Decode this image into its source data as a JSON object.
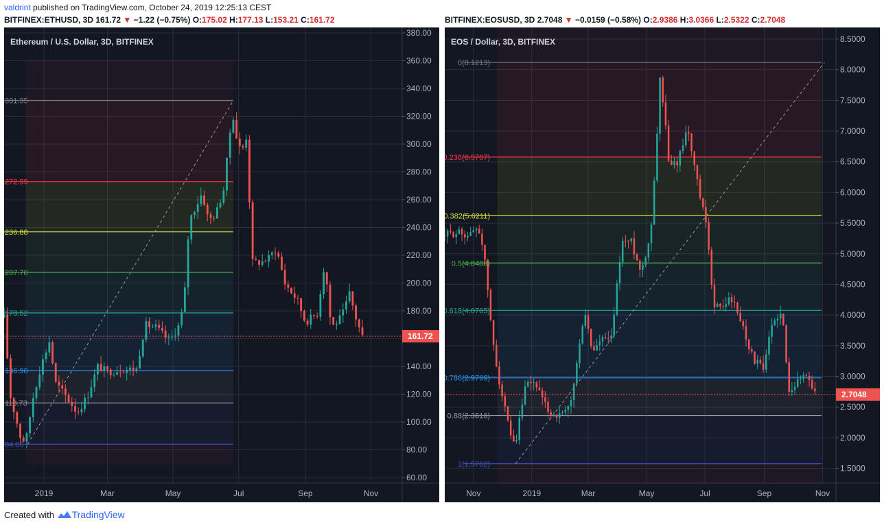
{
  "publish_line": {
    "user": "valdrint",
    "text": " published on TradingView.com, October 24, 2019 12:25:13 CEST"
  },
  "footer": {
    "created": "Created with",
    "brand": "TradingView"
  },
  "left": {
    "header": {
      "symbol": "BITFINEX:ETHUSD, 3D",
      "last": "161.72",
      "change": "−1.22 (−0.75%)",
      "o": "175.02",
      "h": "177.13",
      "l": "153.21",
      "c": "161.72"
    },
    "title": "Ethereum / U.S. Dollar, 3D, BITFINEX",
    "price_label": "161.72"
  },
  "right": {
    "header": {
      "symbol": "BITFINEX:EOSUSD, 3D",
      "last": "2.7048",
      "change": "−0.0159 (−0.58%)",
      "o": "2.9386",
      "h": "3.0366",
      "l": "2.5322",
      "c": "2.7048"
    },
    "title": "EOS / Dollar, 3D, BITFINEX",
    "price_label": "2.7048"
  },
  "colors": {
    "bg": "#131722",
    "up": "#26a69a",
    "down": "#ef5350",
    "axis_text": "#b2b5be",
    "grid": "#2a2e39"
  },
  "chart_data": [
    {
      "type": "candlestick",
      "title": "Ethereum / U.S. Dollar, 3D, BITFINEX",
      "ylim": [
        60,
        380
      ],
      "y_ticks": [
        "60.00",
        "80.00",
        "100.00",
        "120.00",
        "140.00",
        "160.00",
        "180.00",
        "200.00",
        "220.00",
        "240.00",
        "260.00",
        "280.00",
        "300.00",
        "320.00",
        "340.00",
        "360.00",
        "380.00"
      ],
      "x_ticks": [
        "2019",
        "Mar",
        "May",
        "Jul",
        "Sep",
        "Nov"
      ],
      "x_tick_dates": [
        "2019-01-01",
        "2019-03-01",
        "2019-05-01",
        "2019-07-01",
        "2019-09-01",
        "2019-11-01"
      ],
      "x_range": [
        "2018-11-25",
        "2019-11-30"
      ],
      "current_price": 161.72,
      "fib": [
        {
          "label": "331.35",
          "value": 331.35,
          "color": "#787b86"
        },
        {
          "label": "272.99",
          "value": 272.99,
          "color": "#f23645"
        },
        {
          "label": "236.88",
          "value": 236.88,
          "color": "#cddc39"
        },
        {
          "label": "207.70",
          "value": 207.7,
          "color": "#4caf50"
        },
        {
          "label": "178.52",
          "value": 178.52,
          "color": "#26a69a"
        },
        {
          "label": "136.98",
          "value": 136.98,
          "color": "#2196f3"
        },
        {
          "label": "113.73",
          "value": 113.73,
          "color": "#9598a1"
        },
        {
          "label": "84.06",
          "value": 84.06,
          "color": "#3f51b5"
        }
      ],
      "fib_start_date": "2018-12-15",
      "fib_end_date": "2019-06-26",
      "trend_line": {
        "from": {
          "date": "2018-12-17",
          "price": 84.06
        },
        "to": {
          "date": "2019-06-26",
          "price": 331.35
        }
      },
      "anchors": [
        [
          "2018-11-25",
          175
        ],
        [
          "2018-12-01",
          118
        ],
        [
          "2018-12-10",
          90
        ],
        [
          "2018-12-15",
          85
        ],
        [
          "2018-12-22",
          118
        ],
        [
          "2018-12-29",
          140
        ],
        [
          "2019-01-06",
          158
        ],
        [
          "2019-01-12",
          128
        ],
        [
          "2019-01-20",
          120
        ],
        [
          "2019-02-01",
          107
        ],
        [
          "2019-02-10",
          118
        ],
        [
          "2019-02-20",
          140
        ],
        [
          "2019-03-01",
          136
        ],
        [
          "2019-03-15",
          138
        ],
        [
          "2019-03-28",
          138
        ],
        [
          "2019-04-05",
          170
        ],
        [
          "2019-04-15",
          168
        ],
        [
          "2019-04-28",
          158
        ],
        [
          "2019-05-08",
          172
        ],
        [
          "2019-05-12",
          195
        ],
        [
          "2019-05-16",
          245
        ],
        [
          "2019-05-28",
          265
        ],
        [
          "2019-06-03",
          245
        ],
        [
          "2019-06-10",
          250
        ],
        [
          "2019-06-18",
          270
        ],
        [
          "2019-06-22",
          305
        ],
        [
          "2019-06-26",
          320
        ],
        [
          "2019-06-30",
          300
        ],
        [
          "2019-07-04",
          295
        ],
        [
          "2019-07-08",
          305
        ],
        [
          "2019-07-14",
          215
        ],
        [
          "2019-07-22",
          215
        ],
        [
          "2019-07-29",
          218
        ],
        [
          "2019-08-05",
          225
        ],
        [
          "2019-08-13",
          200
        ],
        [
          "2019-08-25",
          187
        ],
        [
          "2019-09-01",
          172
        ],
        [
          "2019-09-12",
          178
        ],
        [
          "2019-09-19",
          215
        ],
        [
          "2019-09-25",
          168
        ],
        [
          "2019-10-05",
          176
        ],
        [
          "2019-10-12",
          192
        ],
        [
          "2019-10-19",
          172
        ],
        [
          "2019-10-24",
          161.72
        ]
      ]
    },
    {
      "type": "candlestick",
      "title": "EOS / Dollar, 3D, BITFINEX",
      "ylim": [
        1.35,
        8.6
      ],
      "y_ticks": [
        "1.5000",
        "2.0000",
        "2.5000",
        "3.0000",
        "3.5000",
        "4.0000",
        "4.5000",
        "5.0000",
        "5.5000",
        "6.0000",
        "6.5000",
        "7.0000",
        "7.5000",
        "8.0000",
        "8.5000"
      ],
      "x_ticks": [
        "Nov",
        "2019",
        "Mar",
        "May",
        "Jul",
        "Sep",
        "Nov"
      ],
      "x_tick_dates": [
        "2018-11-01",
        "2019-01-01",
        "2019-03-01",
        "2019-05-01",
        "2019-07-01",
        "2019-09-01",
        "2019-11-01"
      ],
      "x_range": [
        "2018-10-02",
        "2019-11-15"
      ],
      "current_price": 2.7048,
      "fib": [
        {
          "label": "0(8.1213)",
          "value": 8.1213,
          "color": "#787b86"
        },
        {
          "label": "0.236(6.5767)",
          "value": 6.5767,
          "color": "#f23645"
        },
        {
          "label": "0.382(5.6211)",
          "value": 5.6211,
          "color": "#cddc39"
        },
        {
          "label": "0.5(4.8488)",
          "value": 4.8488,
          "color": "#4caf50"
        },
        {
          "label": "0.618(4.0765)",
          "value": 4.0765,
          "color": "#26a69a"
        },
        {
          "label": "0.786(2.9769)",
          "value": 2.9769,
          "color": "#2196f3"
        },
        {
          "label": "0.88(2.3616)",
          "value": 2.3616,
          "color": "#9598a1"
        },
        {
          "label": "1(1.5762)",
          "value": 1.5762,
          "color": "#3f51b5"
        }
      ],
      "fib_start_date": "2018-11-26",
      "fib_end_date": "2019-10-31",
      "trend_line": {
        "from": {
          "date": "2018-12-15",
          "price": 1.5762
        },
        "to": {
          "date": "2019-11-03",
          "price": 8.1213
        }
      },
      "anchors": [
        [
          "2018-10-02",
          5.3
        ],
        [
          "2018-10-15",
          5.35
        ],
        [
          "2018-10-28",
          5.3
        ],
        [
          "2018-11-05",
          5.45
        ],
        [
          "2018-11-10",
          5.2
        ],
        [
          "2018-11-15",
          4.6
        ],
        [
          "2018-11-20",
          3.7
        ],
        [
          "2018-11-26",
          3.1
        ],
        [
          "2018-12-02",
          2.6
        ],
        [
          "2018-12-10",
          2.0
        ],
        [
          "2018-12-15",
          1.8
        ],
        [
          "2018-12-20",
          2.4
        ],
        [
          "2018-12-26",
          2.85
        ],
        [
          "2019-01-05",
          2.9
        ],
        [
          "2019-01-12",
          2.6
        ],
        [
          "2019-01-20",
          2.4
        ],
        [
          "2019-02-01",
          2.35
        ],
        [
          "2019-02-10",
          2.5
        ],
        [
          "2019-02-15",
          3.0
        ],
        [
          "2019-02-20",
          3.5
        ],
        [
          "2019-02-25",
          4.1
        ],
        [
          "2019-03-05",
          3.4
        ],
        [
          "2019-03-15",
          3.6
        ],
        [
          "2019-03-25",
          3.6
        ],
        [
          "2019-04-05",
          5.2
        ],
        [
          "2019-04-15",
          5.2
        ],
        [
          "2019-04-25",
          4.7
        ],
        [
          "2019-05-05",
          5.3
        ],
        [
          "2019-05-10",
          6.4
        ],
        [
          "2019-05-15",
          7.9
        ],
        [
          "2019-05-20",
          7.2
        ],
        [
          "2019-05-25",
          6.4
        ],
        [
          "2019-06-02",
          6.5
        ],
        [
          "2019-06-08",
          6.8
        ],
        [
          "2019-06-12",
          7.1
        ],
        [
          "2019-06-18",
          6.6
        ],
        [
          "2019-06-26",
          5.9
        ],
        [
          "2019-07-02",
          5.5
        ],
        [
          "2019-07-10",
          4.2
        ],
        [
          "2019-07-18",
          4.1
        ],
        [
          "2019-07-28",
          4.3
        ],
        [
          "2019-08-08",
          3.9
        ],
        [
          "2019-08-20",
          3.3
        ],
        [
          "2019-09-01",
          3.1
        ],
        [
          "2019-09-08",
          3.8
        ],
        [
          "2019-09-15",
          4.0
        ],
        [
          "2019-09-20",
          4.0
        ],
        [
          "2019-09-26",
          2.8
        ],
        [
          "2019-10-05",
          2.9
        ],
        [
          "2019-10-14",
          3.05
        ],
        [
          "2019-10-20",
          2.9
        ],
        [
          "2019-10-24",
          2.7048
        ]
      ]
    }
  ]
}
